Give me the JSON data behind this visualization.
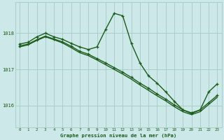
{
  "title": "Graphe pression niveau de la mer (hPa)",
  "bg_color": "#cde8e8",
  "grid_color": "#a8cfc8",
  "line_color": "#1a5c1a",
  "xlim": [
    -0.5,
    23.5
  ],
  "ylim": [
    1015.4,
    1018.85
  ],
  "yticks": [
    1016,
    1017,
    1018
  ],
  "xticks": [
    0,
    1,
    2,
    3,
    4,
    5,
    6,
    7,
    8,
    9,
    10,
    11,
    12,
    13,
    14,
    15,
    16,
    17,
    18,
    19,
    20,
    21,
    22,
    23
  ],
  "series": [
    {
      "x": [
        0,
        1,
        2,
        3,
        4,
        5,
        6,
        7,
        8,
        9,
        10,
        11,
        12,
        13,
        14,
        15,
        16,
        17,
        18,
        19,
        20,
        21,
        22,
        23
      ],
      "y": [
        1017.7,
        1017.75,
        1017.9,
        1018.0,
        1017.9,
        1017.83,
        1017.72,
        1017.62,
        1017.55,
        1017.62,
        1018.1,
        1018.55,
        1018.48,
        1017.72,
        1017.18,
        1016.82,
        1016.62,
        1016.38,
        1016.12,
        1015.88,
        1015.78,
        1015.88,
        1016.38,
        1016.6
      ],
      "has_markers": true,
      "linewidth": 1.0
    },
    {
      "x": [
        0,
        1,
        2,
        3,
        4,
        5,
        6,
        7,
        8,
        9,
        10,
        11,
        12,
        13,
        14,
        15,
        16,
        17,
        18,
        19,
        20,
        21,
        22,
        23
      ],
      "y": [
        1017.65,
        1017.7,
        1017.82,
        1017.92,
        1017.84,
        1017.76,
        1017.64,
        1017.5,
        1017.42,
        1017.3,
        1017.18,
        1017.05,
        1016.92,
        1016.78,
        1016.62,
        1016.48,
        1016.32,
        1016.18,
        1016.02,
        1015.88,
        1015.8,
        1015.88,
        1016.08,
        1016.28
      ],
      "has_markers": true,
      "linewidth": 1.0
    },
    {
      "x": [
        0,
        1,
        2,
        3,
        4,
        5,
        6,
        7,
        8,
        9,
        10,
        11,
        12,
        13,
        14,
        15,
        16,
        17,
        18,
        19,
        20,
        21,
        22,
        23
      ],
      "y": [
        1017.62,
        1017.68,
        1017.8,
        1017.9,
        1017.82,
        1017.73,
        1017.6,
        1017.46,
        1017.38,
        1017.26,
        1017.13,
        1017.0,
        1016.87,
        1016.73,
        1016.57,
        1016.42,
        1016.27,
        1016.13,
        1015.97,
        1015.83,
        1015.75,
        1015.83,
        1016.03,
        1016.23
      ],
      "has_markers": false,
      "linewidth": 1.0
    }
  ]
}
